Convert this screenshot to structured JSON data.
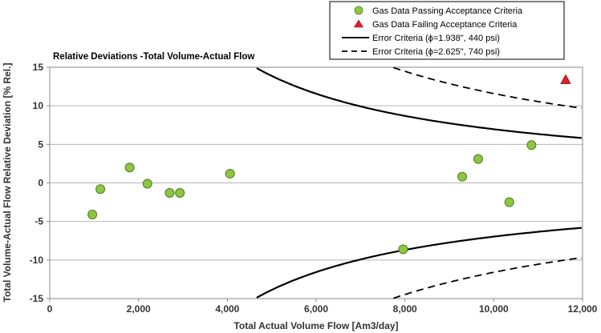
{
  "chart_data": {
    "type": "scatter",
    "title": "Relative Deviations -Total Volume-Actual Flow",
    "xlabel": "Total Actual Volume Flow [Am3/day]",
    "ylabel": "Total Volume-Actual Flow Relative Deviation [% Rel.]",
    "xlim": [
      0,
      12000
    ],
    "ylim": [
      -15,
      15
    ],
    "x_ticks": [
      0,
      2000,
      4000,
      6000,
      8000,
      10000,
      12000
    ],
    "x_tick_labels": [
      "0",
      "2,000",
      "4,000",
      "6,000",
      "8,000",
      "10,000",
      "12,000"
    ],
    "y_ticks": [
      -15,
      -10,
      -5,
      0,
      5,
      10,
      15
    ],
    "y_tick_labels": [
      "-15",
      "-10",
      "-5",
      "0",
      "5",
      "10",
      "15"
    ],
    "grid": "horizontal",
    "legend_position": "top-right",
    "series": [
      {
        "name": "Gas Data Passing Acceptance Criteria",
        "marker": "circle",
        "color": "#8dc63f",
        "points": [
          {
            "x": 960,
            "y": -4.1
          },
          {
            "x": 1140,
            "y": -0.8
          },
          {
            "x": 1800,
            "y": 2.0
          },
          {
            "x": 2200,
            "y": -0.1
          },
          {
            "x": 2700,
            "y": -1.3
          },
          {
            "x": 2930,
            "y": -1.3
          },
          {
            "x": 4060,
            "y": 1.2
          },
          {
            "x": 7960,
            "y": -8.6
          },
          {
            "x": 9290,
            "y": 0.8
          },
          {
            "x": 9650,
            "y": 3.1
          },
          {
            "x": 10350,
            "y": -2.5
          },
          {
            "x": 10850,
            "y": 4.9
          }
        ]
      },
      {
        "name": "Gas Data Failing Acceptance Criteria",
        "marker": "triangle",
        "color": "#e31e24",
        "points": [
          {
            "x": 11620,
            "y": 13.4
          }
        ]
      },
      {
        "name": "Error Criteria (ϕ=1.938\", 440 psi)",
        "line": "solid",
        "color": "#000000",
        "formula": "± sqrt(0.49 + 4.8e9 / x^2)"
      },
      {
        "name": "Error Criteria (ϕ=2.625\", 740 psi)",
        "line": "dashed",
        "color": "#000000",
        "formula": "± sqrt(1.0 + 1.334e10 / x^2)"
      }
    ]
  }
}
